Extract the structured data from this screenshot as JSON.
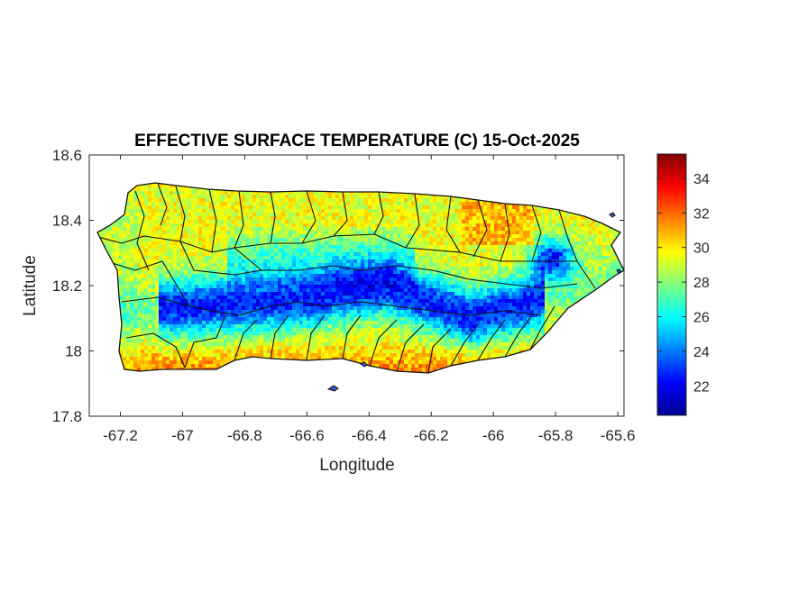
{
  "chart_data": {
    "type": "heatmap",
    "title": "EFFECTIVE SURFACE TEMPERATURE (C) 15-Oct-2025",
    "xlabel": "Longitude",
    "ylabel": "Latitude",
    "xlim": [
      -67.3,
      -65.58
    ],
    "ylim": [
      17.8,
      18.6
    ],
    "xticks": [
      -67.2,
      -67,
      -66.8,
      -66.6,
      -66.4,
      -66.2,
      -66,
      -65.8,
      -65.6
    ],
    "xtick_labels": [
      "-67.2",
      "-67",
      "-66.8",
      "-66.6",
      "-66.4",
      "-66.2",
      "-66",
      "-65.8",
      "-65.6"
    ],
    "yticks": [
      17.8,
      18,
      18.2,
      18.4,
      18.6
    ],
    "ytick_labels": [
      "17.8",
      "18",
      "18.2",
      "18.4",
      "18.6"
    ],
    "colorbar": {
      "colormap": "jet",
      "range": [
        20.3,
        35.4
      ],
      "ticks": [
        22,
        24,
        26,
        28,
        30,
        32,
        34
      ],
      "tick_labels": [
        "22",
        "24",
        "26",
        "28",
        "30",
        "32",
        "34"
      ],
      "placement": "right"
    },
    "grid": false,
    "region": "Puerto Rico municipalities",
    "colors": {
      "cool": "#00008f",
      "warm": "#ffff00",
      "hot": "#800000"
    }
  }
}
